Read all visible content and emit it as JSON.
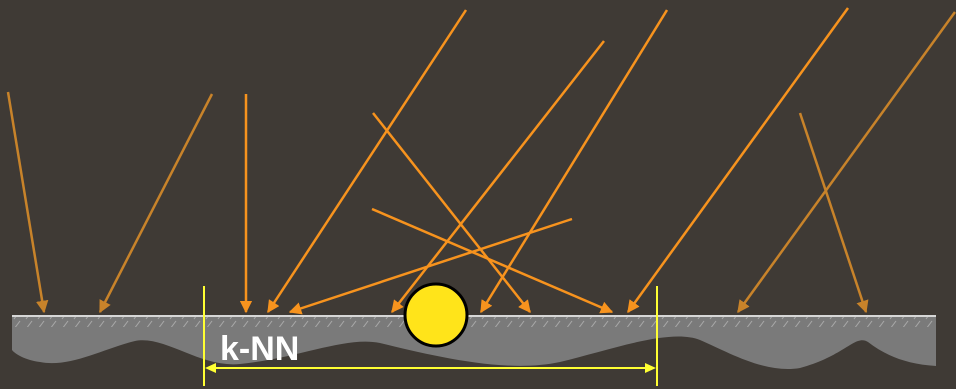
{
  "diagram": {
    "label": "k-NN",
    "colors": {
      "background": "#3f3a35",
      "ray_bright": "#f7931e",
      "ray_dim": "#c8832a",
      "surface_fill": "#7a7a7a",
      "surface_edge": "#d7d7d7",
      "query_point": "#ffe41a",
      "bracket": "#ffff33"
    }
  }
}
